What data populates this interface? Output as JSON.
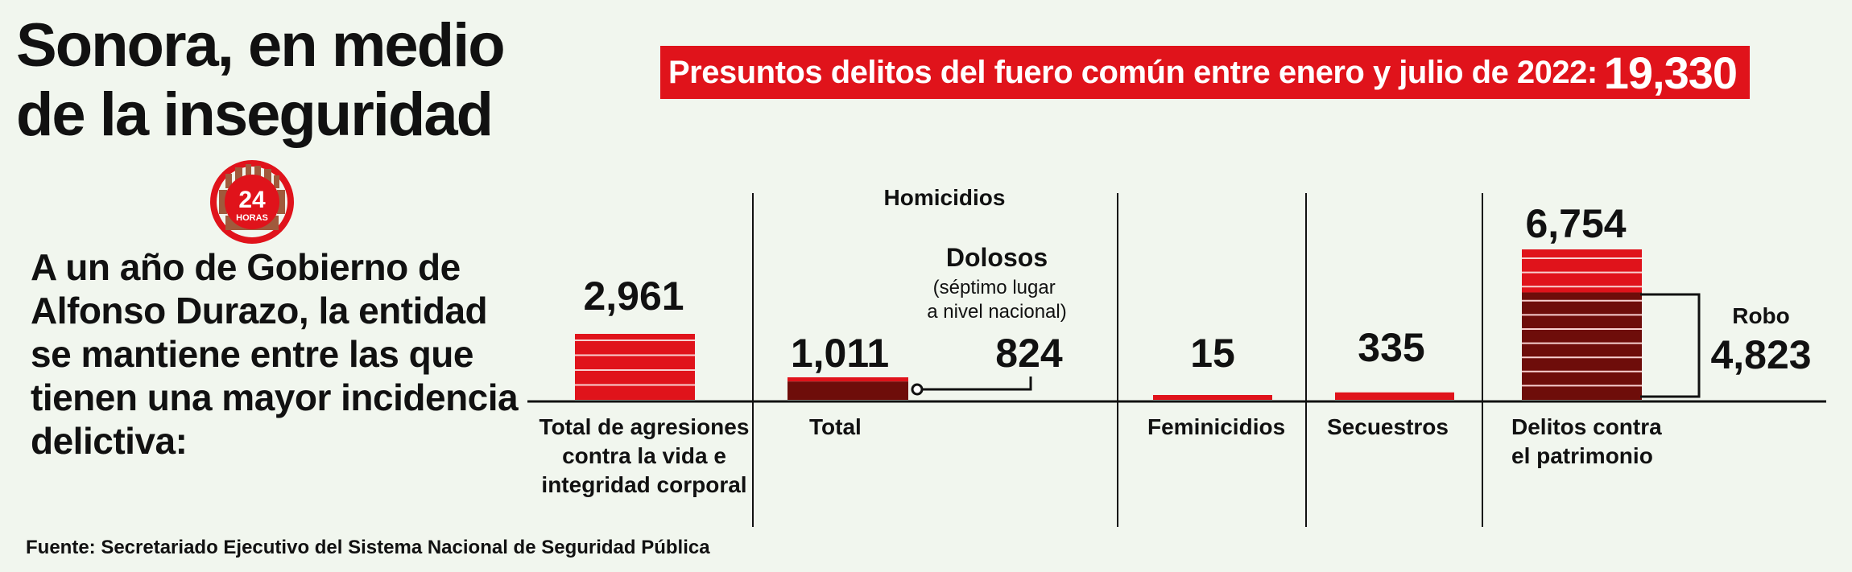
{
  "header": {
    "title": "Sonora, en medio\nde la inseguridad",
    "banner_label": "Presuntos delitos del fuero común entre enero y julio de 2022:",
    "banner_total": "19,330"
  },
  "logo": {
    "number": "24",
    "word": "HORAS",
    "icon": "24-horas-logo"
  },
  "intro": "A un año de Gobierno de Alfonso Durazo, la entidad se mantiene entre las que tienen una mayor incidencia delictiva:",
  "source": "Fuente: Secretariado Ejecutivo del Sistema Nacional de Seguridad Pública",
  "colors": {
    "red": "#e0131b",
    "dark_red": "#6e0d0a",
    "background": "#f1f6ee",
    "text": "#111111"
  },
  "chart_data": {
    "type": "bar",
    "group_label": "Homicidios",
    "categories": [
      "Total de agresiones contra la vida e integridad corporal",
      "Total",
      "Feminicidios",
      "Secuestros",
      "Delitos contra el patrimonio"
    ],
    "values": [
      2961,
      1011,
      15,
      335,
      6754
    ],
    "value_labels": [
      "2,961",
      "1,011",
      "15",
      "335",
      "6,754"
    ],
    "sub_values": {
      "dolosos": {
        "label": "Dolosos",
        "note": "(séptimo lugar a nivel nacional)",
        "value": 824,
        "value_label": "824"
      },
      "robo": {
        "label": "Robo",
        "value": 4823,
        "value_label": "4,823"
      }
    }
  }
}
